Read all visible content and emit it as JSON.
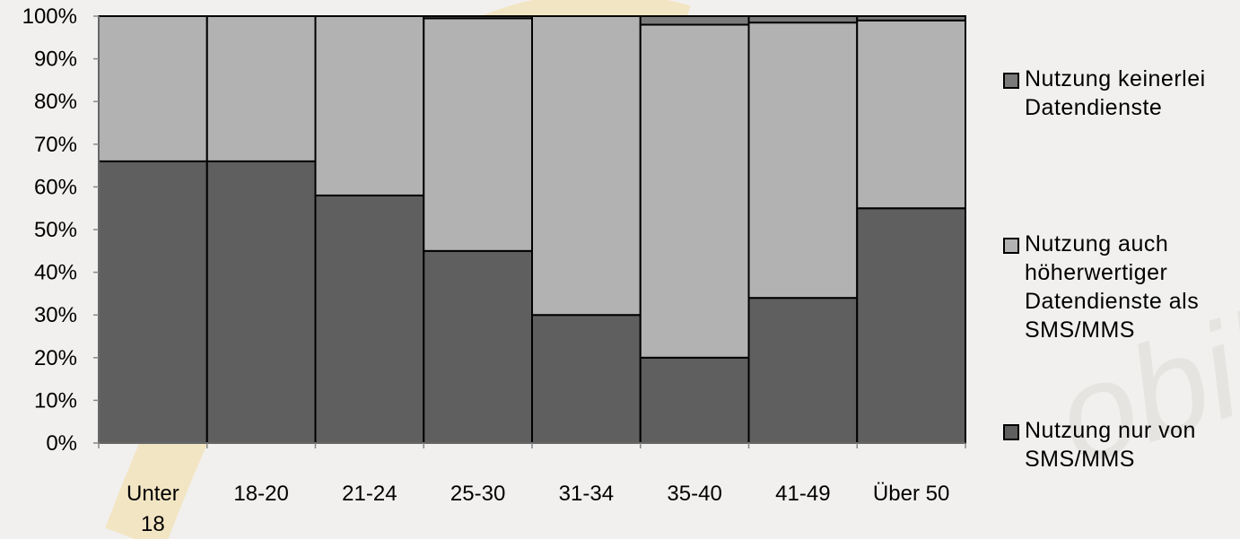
{
  "chart_data": {
    "type": "bar",
    "stacked": true,
    "categories": [
      "Unter\n18",
      "18-20",
      "21-24",
      "25-30",
      "31-34",
      "35-40",
      "41-49",
      "Über 50"
    ],
    "series": [
      {
        "name": "Nutzung nur von SMS/MMS",
        "color": "#5f5f5f",
        "values": [
          66,
          66,
          58,
          45,
          30,
          20,
          34,
          55
        ]
      },
      {
        "name": "Nutzung auch höherwertiger Datendienste als SMS/MMS",
        "color": "#b2b2b2",
        "values": [
          34,
          34,
          42,
          54.5,
          70,
          78,
          64.5,
          44
        ]
      },
      {
        "name": "Nutzung keinerlei Datendienste",
        "color": "#7a7a7a",
        "values": [
          0,
          0,
          0,
          0.5,
          0,
          2,
          1.5,
          1
        ]
      }
    ],
    "ylim": [
      0,
      100
    ],
    "yticks": [
      "0%",
      "10%",
      "20%",
      "30%",
      "40%",
      "50%",
      "60%",
      "70%",
      "80%",
      "90%",
      "100%"
    ],
    "legend_position": "right",
    "grid": false
  },
  "legend": {
    "items": [
      {
        "label": "Nutzung keinerlei\nDatendienste",
        "color": "#7a7a7a"
      },
      {
        "label": "Nutzung auch\nhöherwertiger\nDatendienste als\nSMS/MMS",
        "color": "#b2b2b2"
      },
      {
        "label": "Nutzung nur von\nSMS/MMS",
        "color": "#5f5f5f"
      }
    ]
  }
}
